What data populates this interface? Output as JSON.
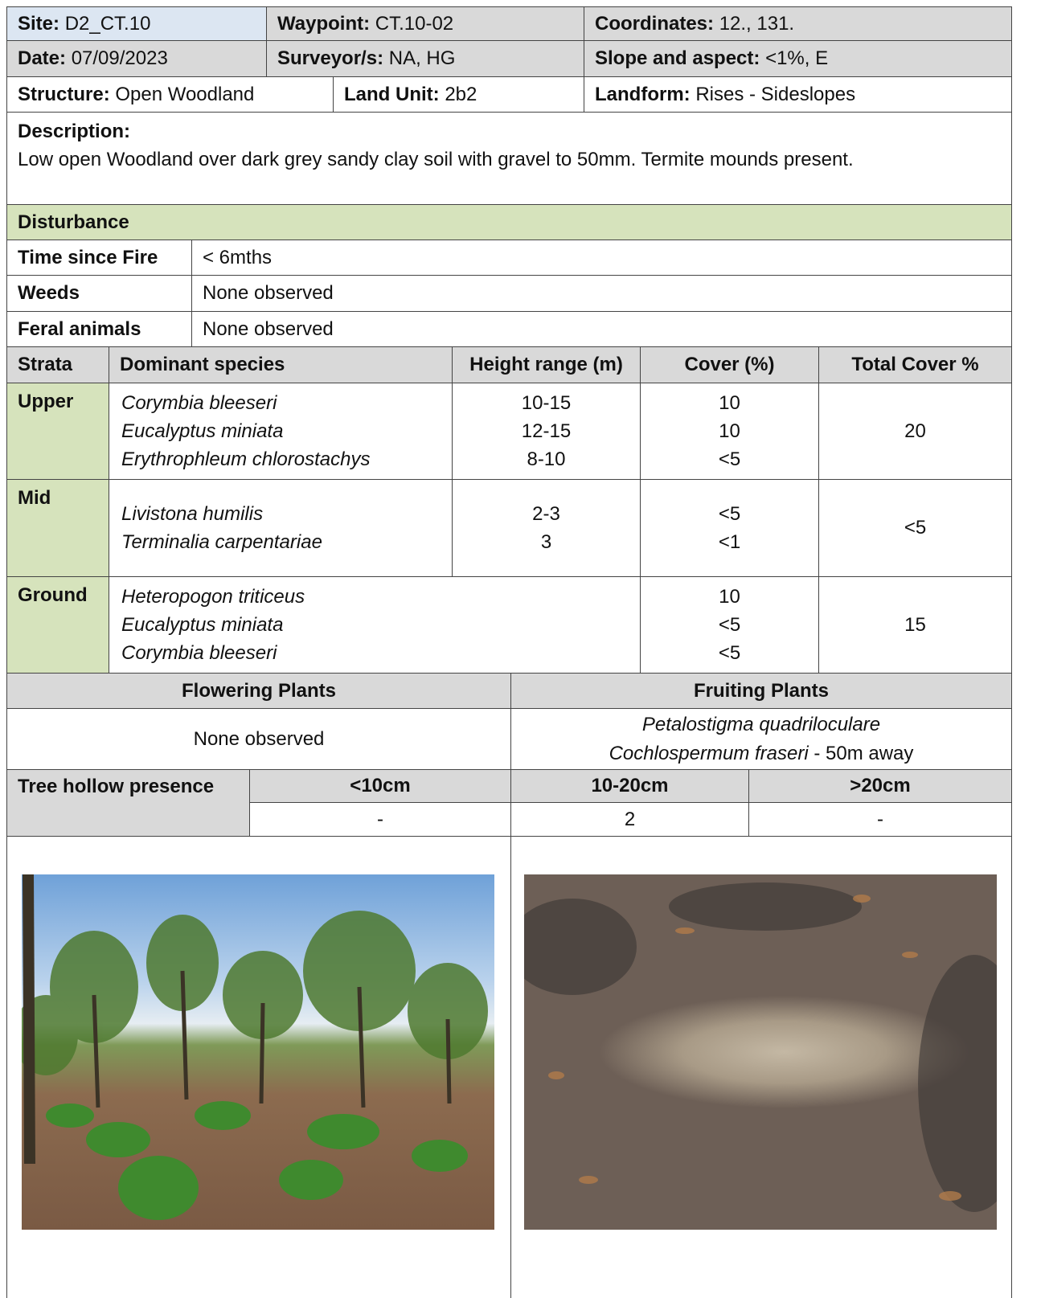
{
  "header": {
    "site": {
      "label": "Site:",
      "value": "D2_CT.10"
    },
    "waypoint": {
      "label": "Waypoint:",
      "value": "CT.10-02"
    },
    "coordinates": {
      "label": "Coordinates:",
      "value": "12., 131."
    },
    "date": {
      "label": "Date:",
      "value": "07/09/2023"
    },
    "surveyors": {
      "label": "Surveyor/s:",
      "value": "NA, HG"
    },
    "slope": {
      "label": "Slope and aspect:",
      "value": "<1%, E"
    },
    "structure": {
      "label": "Structure:",
      "value": "Open Woodland"
    },
    "land_unit": {
      "label": "Land Unit:",
      "value": "2b2"
    },
    "landform": {
      "label": "Landform:",
      "value": "Rises - Sideslopes"
    }
  },
  "description": {
    "label": "Description:",
    "text": "Low open Woodland over dark grey sandy clay soil with gravel to 50mm. Termite mounds present."
  },
  "disturbance": {
    "title": "Disturbance",
    "rows": [
      [
        "Time since Fire",
        "< 6mths"
      ],
      [
        "Weeds",
        "None observed"
      ],
      [
        "Feral animals",
        "None observed"
      ]
    ]
  },
  "strata": {
    "columns": [
      "Strata",
      "Dominant species",
      "Height range (m)",
      "Cover (%)",
      "Total Cover %"
    ],
    "rows": [
      {
        "name": "Upper",
        "species": [
          "Corymbia bleeseri",
          "Eucalyptus miniata",
          "Erythrophleum chlorostachys"
        ],
        "heights": [
          "10-15",
          "12-15",
          "8-10"
        ],
        "covers": [
          "10",
          "10",
          "<5"
        ],
        "total": "20"
      },
      {
        "name": "Mid",
        "species": [
          "Livistona humilis",
          "Terminalia carpentariae"
        ],
        "heights": [
          "2-3",
          "3"
        ],
        "covers": [
          "<5",
          "<1"
        ],
        "total": "<5"
      },
      {
        "name": "Ground",
        "species": [
          "Heteropogon triticeus",
          "Eucalyptus miniata",
          "Corymbia bleeseri"
        ],
        "covers": [
          "10",
          "<5",
          "<5"
        ],
        "total": "15"
      }
    ]
  },
  "flowering": {
    "title": "Flowering Plants",
    "text": "None observed"
  },
  "fruiting": {
    "title": "Fruiting Plants",
    "items": [
      {
        "species": "Petalostigma quadriloculare"
      },
      {
        "species": "Cochlospermum fraseri",
        "note": "- 50m away"
      }
    ]
  },
  "tree_hollows": {
    "label": "Tree hollow presence",
    "columns": [
      "<10cm",
      "10-20cm",
      ">20cm"
    ],
    "values": [
      "-",
      "2",
      "-"
    ]
  }
}
